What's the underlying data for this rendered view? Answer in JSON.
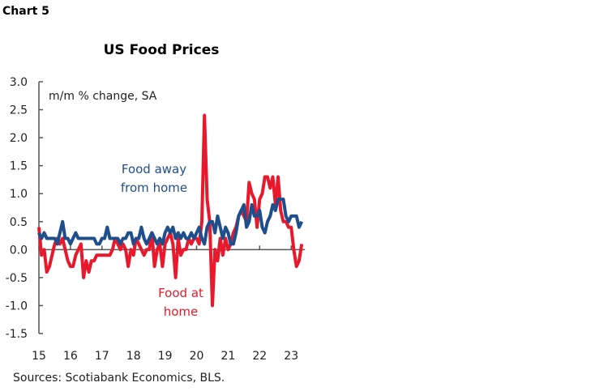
{
  "chart_label": "Chart 5",
  "source": "Sources: Scotiabank Economics, BLS.",
  "chart_data": {
    "type": "line",
    "title": "US Food Prices",
    "ylabel": "m/m % change, SA",
    "xlabel": "",
    "ylim": [
      -1.5,
      3.0
    ],
    "yticks": [
      "3.0",
      "2.5",
      "2.0",
      "1.5",
      "1.0",
      "0.5",
      "0.0",
      "-0.5",
      "-1.0",
      "-1.5"
    ],
    "xticks": [
      "15",
      "16",
      "17",
      "18",
      "19",
      "20",
      "21",
      "22",
      "23"
    ],
    "x_start": "2015-01",
    "frequency": "monthly",
    "grid": false,
    "series": [
      {
        "name": "Food at home",
        "color": "#e8192c",
        "label_lines": [
          "Food at",
          "home"
        ],
        "values": [
          0.4,
          -0.1,
          0.0,
          -0.4,
          -0.3,
          -0.1,
          0.1,
          0.2,
          0.1,
          0.2,
          0.0,
          -0.2,
          -0.3,
          -0.3,
          -0.1,
          0.0,
          0.1,
          -0.5,
          -0.2,
          -0.4,
          -0.2,
          -0.2,
          -0.1,
          -0.1,
          -0.1,
          -0.1,
          -0.1,
          -0.1,
          0.0,
          0.2,
          0.1,
          0.0,
          0.1,
          0.0,
          -0.3,
          0.0,
          -0.1,
          0.2,
          0.1,
          0.0,
          -0.1,
          0.0,
          0.0,
          0.3,
          -0.3,
          0.0,
          0.1,
          -0.3,
          0.1,
          0.2,
          0.3,
          0.1,
          -0.5,
          0.2,
          -0.1,
          0.0,
          0.0,
          0.2,
          0.1,
          0.2,
          0.2,
          0.1,
          0.5,
          2.4,
          0.9,
          0.5,
          -1.0,
          0.0,
          -0.2,
          0.2,
          -0.1,
          0.2,
          0.0,
          0.1,
          0.3,
          0.4,
          0.6,
          0.7,
          0.6,
          0.5,
          1.2,
          1.0,
          0.9,
          0.4,
          0.9,
          1.0,
          1.3,
          1.3,
          1.1,
          1.3,
          0.8,
          1.3,
          0.7,
          0.5,
          0.5,
          0.4,
          0.4,
          0.0,
          -0.3,
          -0.2,
          0.1
        ]
      },
      {
        "name": "Food away from home",
        "color": "#1f4e8c",
        "label_lines": [
          "Food away",
          "from home"
        ],
        "values": [
          0.3,
          0.2,
          0.3,
          0.2,
          0.2,
          0.2,
          0.2,
          0.1,
          0.3,
          0.5,
          0.2,
          0.2,
          0.1,
          0.2,
          0.3,
          0.2,
          0.2,
          0.2,
          0.2,
          0.2,
          0.2,
          0.2,
          0.1,
          0.1,
          0.2,
          0.2,
          0.4,
          0.2,
          0.2,
          0.2,
          0.2,
          0.1,
          0.2,
          0.2,
          0.3,
          0.3,
          0.1,
          0.2,
          0.2,
          0.4,
          0.2,
          0.1,
          0.2,
          0.3,
          0.2,
          0.1,
          0.2,
          0.1,
          0.3,
          0.4,
          0.3,
          0.4,
          0.2,
          0.3,
          0.2,
          0.3,
          0.2,
          0.2,
          0.3,
          0.2,
          0.3,
          0.4,
          0.2,
          0.1,
          0.4,
          0.5,
          0.5,
          0.3,
          0.6,
          0.4,
          0.2,
          0.4,
          0.3,
          0.1,
          0.1,
          0.3,
          0.6,
          0.7,
          0.8,
          0.4,
          0.5,
          0.8,
          0.6,
          0.6,
          0.7,
          0.4,
          0.3,
          0.5,
          0.6,
          0.8,
          0.7,
          0.9,
          0.9,
          0.9,
          0.6,
          0.5,
          0.6,
          0.6,
          0.6,
          0.4,
          0.5
        ]
      }
    ]
  }
}
